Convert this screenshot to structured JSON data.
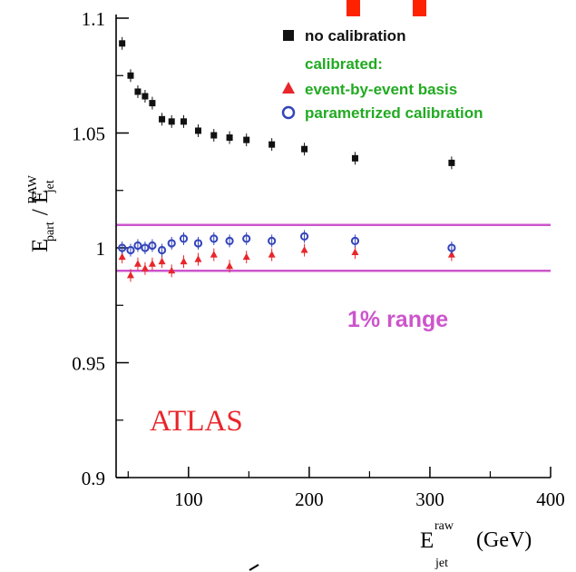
{
  "chart_data": {
    "type": "scatter",
    "xlim": [
      40,
      400
    ],
    "ylim": [
      0.9,
      1.1
    ],
    "x_ticks": [
      100,
      200,
      300,
      400
    ],
    "y_ticks": [
      0.9,
      0.95,
      1.0,
      1.05,
      1.1
    ],
    "x_tick_labels": [
      "100",
      "200",
      "300",
      "400"
    ],
    "y_tick_labels": [
      "0.9",
      "0.95",
      "1",
      "1.05",
      "1.1"
    ],
    "xlabel": {
      "base": "E",
      "sup": "raw",
      "sub": "jet",
      "unit": "(GeV)"
    },
    "ylabel": {
      "num": "E",
      "num_sub": "part",
      "den": "E",
      "den_sub": "jet",
      "den_sup": "RAW"
    },
    "legend": {
      "placement": "top-right",
      "header": "calibrated:",
      "entries": [
        "no calibration",
        "event-by-event basis",
        "parametrized calibration"
      ]
    },
    "band": {
      "lower": 0.99,
      "upper": 1.01,
      "label": "1% range",
      "color": "#cc55cc"
    },
    "annotation": "ATLAS",
    "series": [
      {
        "name": "no calibration",
        "marker": "square",
        "color": "#111111",
        "x": [
          45,
          52,
          58,
          64,
          70,
          78,
          86,
          96,
          108,
          121,
          134,
          148,
          169,
          196,
          238,
          318
        ],
        "y": [
          1.089,
          1.075,
          1.068,
          1.066,
          1.063,
          1.056,
          1.055,
          1.055,
          1.051,
          1.049,
          1.048,
          1.047,
          1.045,
          1.043,
          1.039,
          1.037
        ]
      },
      {
        "name": "event-by-event basis",
        "marker": "triangle",
        "color": "#e8262b",
        "x": [
          45,
          52,
          58,
          64,
          70,
          78,
          86,
          96,
          108,
          121,
          134,
          148,
          169,
          196,
          238,
          318
        ],
        "y": [
          0.996,
          0.988,
          0.993,
          0.991,
          0.993,
          0.994,
          0.99,
          0.994,
          0.995,
          0.997,
          0.992,
          0.996,
          0.997,
          0.999,
          0.998,
          0.997
        ]
      },
      {
        "name": "parametrized calibration",
        "marker": "circle",
        "color": "#3344bb",
        "x": [
          45,
          52,
          58,
          64,
          70,
          78,
          86,
          96,
          108,
          121,
          134,
          148,
          169,
          196,
          238,
          318
        ],
        "y": [
          1.0,
          0.999,
          1.001,
          1.0,
          1.001,
          0.999,
          1.002,
          1.004,
          1.002,
          1.004,
          1.003,
          1.004,
          1.003,
          1.005,
          1.003,
          1.0
        ]
      }
    ]
  }
}
